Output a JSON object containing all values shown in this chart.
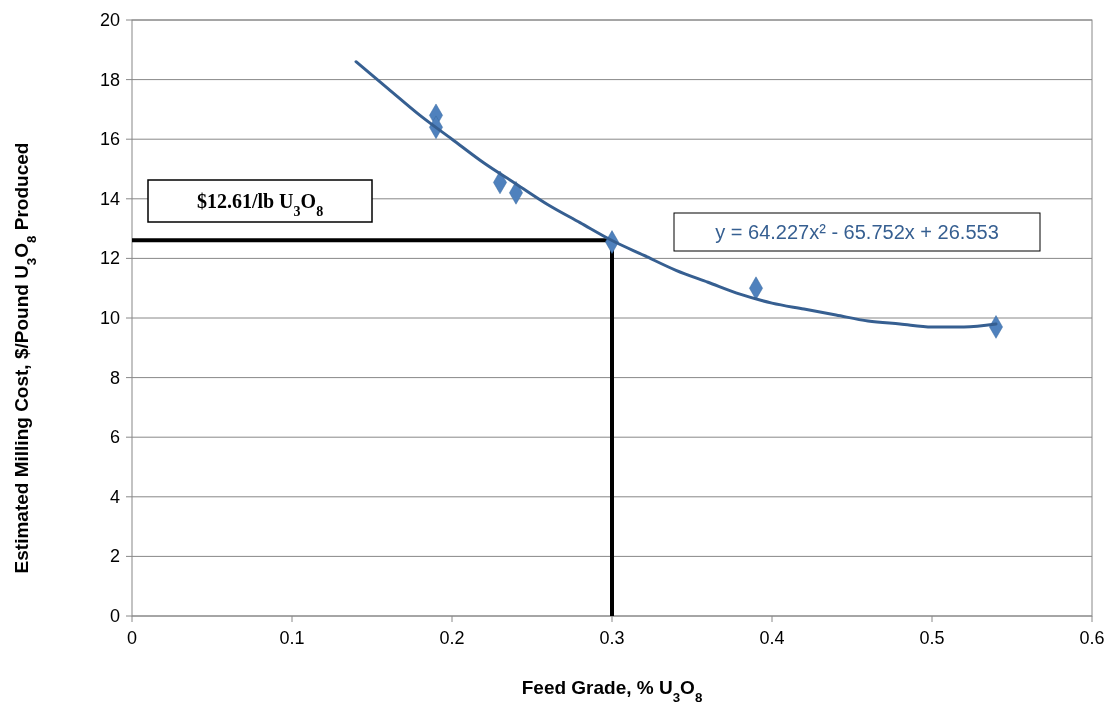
{
  "chart_data": {
    "type": "scatter",
    "xlabel": "Feed Grade, % U$_{3}$O$_{8}$",
    "ylabel": "Estimated Milling Cost, $/Pound  U$_{3}$O$_{8}$ Produced",
    "xlim": [
      0,
      0.6
    ],
    "xticks": [
      0,
      0.1,
      0.2,
      0.3,
      0.4,
      0.5,
      0.6
    ],
    "ylim": [
      0,
      20
    ],
    "yticks": [
      0,
      2,
      4,
      6,
      8,
      10,
      12,
      14,
      16,
      18,
      20
    ],
    "grid": "y",
    "series": [
      {
        "color": "#4f81bd",
        "marker": "diamond",
        "x": [
          0.19,
          0.19,
          0.23,
          0.24,
          0.3,
          0.39,
          0.54
        ],
        "values": [
          16.8,
          16.4,
          14.55,
          14.2,
          12.55,
          11.0,
          9.7
        ]
      },
      {
        "type": "line",
        "color": "#365f91",
        "marker": "none",
        "line_style": "solid",
        "x": [
          0.14,
          0.16,
          0.18,
          0.2,
          0.22,
          0.24,
          0.26,
          0.28,
          0.3,
          0.32,
          0.34,
          0.36,
          0.38,
          0.4,
          0.42,
          0.44,
          0.46,
          0.48,
          0.5,
          0.52,
          0.54
        ],
        "values": [
          18.6,
          17.7,
          16.8,
          16.0,
          15.2,
          14.5,
          13.8,
          13.2,
          12.6,
          12.1,
          11.6,
          11.2,
          10.8,
          10.5,
          10.3,
          10.1,
          9.9,
          9.8,
          9.7,
          9.7,
          9.8
        ]
      }
    ],
    "ref_lines": [
      {
        "axis": "y",
        "value": 12.61,
        "label": "$12.61/lb U$_{3}$O$_{8}$",
        "color": "#000000"
      },
      {
        "axis": "x",
        "value": 0.3,
        "color": "#000000"
      }
    ],
    "annotations": [
      "y = 64.227x² - 65.752x + 26.553"
    ]
  }
}
